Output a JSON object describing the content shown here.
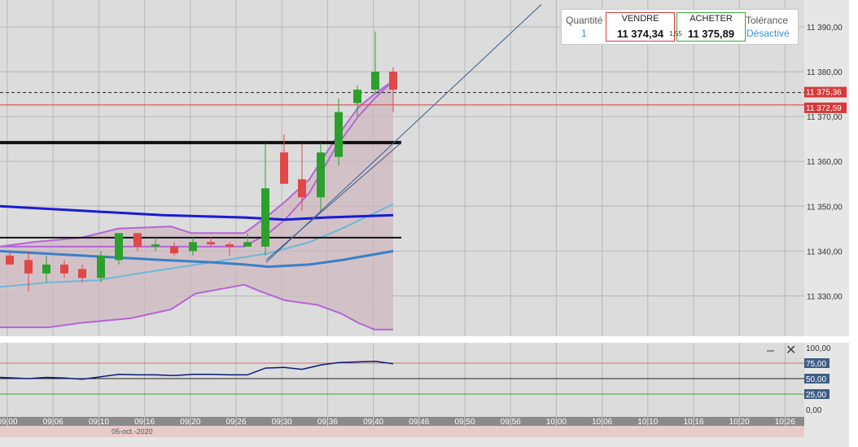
{
  "order_panel": {
    "quantity_label": "Quantité",
    "quantity_value": "1",
    "sell_label": "VENDRE",
    "sell_price": "11 374,34",
    "spread": "1,55",
    "buy_label": "ACHETER",
    "buy_price": "11 375,89",
    "tolerance_label": "Tolérance",
    "tolerance_value": "Désactivé"
  },
  "osc_controls": {
    "minimize": "–",
    "close": "✕"
  },
  "date_label": "05-oct.-2020",
  "colors": {
    "up_candle": "#2ca02c",
    "down_candle": "#e04848",
    "bollinger": "#b565d6",
    "ma_dark": "#1a1ad6",
    "ma_mid": "#3a7fc8",
    "ma_light": "#6db8d8",
    "level_line": "#111111",
    "last_price": "#d63a3a",
    "oscillator": "#0a1a7a"
  },
  "chart_data": [
    {
      "type": "candlestick",
      "title": "",
      "y_ticks": [
        "11 390,00",
        "11 380,00",
        "11 370,00",
        "11 360,00",
        "11 350,00",
        "11 340,00",
        "11 330,00"
      ],
      "ylim": [
        11321,
        11396
      ],
      "price_tags": [
        {
          "label": "11 375,36",
          "value": 11375.36,
          "style": "dashed",
          "color": "#d63a3a"
        },
        {
          "label": "11 372,59",
          "value": 11372.59,
          "style": "solid",
          "color": "#d63a3a"
        }
      ],
      "x_ticks": [
        "09:00",
        "09:06",
        "09:10",
        "09:16",
        "09:20",
        "09:26",
        "09:30",
        "09:36",
        "09:40",
        "09:46",
        "09:50",
        "09:56",
        "10:00",
        "10:06",
        "10:10",
        "10:16",
        "10:20",
        "10:26"
      ],
      "candles": [
        {
          "x": 12,
          "open": 11339,
          "high": 11340,
          "low": 11337,
          "close": 11337
        },
        {
          "x": 35,
          "open": 11338,
          "high": 11340,
          "low": 11331,
          "close": 11335
        },
        {
          "x": 57,
          "open": 11335,
          "high": 11339,
          "low": 11333,
          "close": 11337
        },
        {
          "x": 79,
          "open": 11337,
          "high": 11338,
          "low": 11334,
          "close": 11335
        },
        {
          "x": 101,
          "open": 11336,
          "high": 11337,
          "low": 11333,
          "close": 11334
        },
        {
          "x": 124,
          "open": 11334,
          "high": 11340,
          "low": 11333,
          "close": 11339
        },
        {
          "x": 146,
          "open": 11338,
          "high": 11344,
          "low": 11337,
          "close": 11344
        },
        {
          "x": 169,
          "open": 11344,
          "high": 11344,
          "low": 11340,
          "close": 11341
        },
        {
          "x": 191,
          "open": 11341,
          "high": 11343,
          "low": 11340,
          "close": 11341.5
        },
        {
          "x": 214,
          "open": 11341,
          "high": 11342,
          "low": 11339,
          "close": 11339.5
        },
        {
          "x": 237,
          "open": 11340,
          "high": 11343,
          "low": 11339,
          "close": 11342
        },
        {
          "x": 259,
          "open": 11342,
          "high": 11343,
          "low": 11341,
          "close": 11341.5
        },
        {
          "x": 282,
          "open": 11341.5,
          "high": 11342,
          "low": 11339,
          "close": 11341
        },
        {
          "x": 304,
          "open": 11341,
          "high": 11344,
          "low": 11341,
          "close": 11342
        },
        {
          "x": 326,
          "open": 11341,
          "high": 11364,
          "low": 11339,
          "close": 11354
        },
        {
          "x": 349,
          "open": 11362,
          "high": 11366,
          "low": 11355,
          "close": 11355
        },
        {
          "x": 371,
          "open": 11356,
          "high": 11364,
          "low": 11349,
          "close": 11352
        },
        {
          "x": 394,
          "open": 11352,
          "high": 11364,
          "low": 11349,
          "close": 11362
        },
        {
          "x": 416,
          "open": 11361,
          "high": 11374,
          "low": 11359,
          "close": 11371
        },
        {
          "x": 439,
          "open": 11373,
          "high": 11377,
          "low": 11370,
          "close": 11376
        },
        {
          "x": 461,
          "open": 11376,
          "high": 11389,
          "low": 11375,
          "close": 11380
        },
        {
          "x": 483,
          "open": 11380,
          "high": 11381,
          "low": 11371,
          "close": 11376
        }
      ],
      "bollinger_upper": [
        [
          0,
          11341
        ],
        [
          40,
          11342
        ],
        [
          100,
          11343
        ],
        [
          145,
          11345
        ],
        [
          210,
          11345.5
        ],
        [
          235,
          11344
        ],
        [
          300,
          11344
        ],
        [
          330,
          11348
        ],
        [
          350,
          11351
        ],
        [
          380,
          11356
        ],
        [
          412,
          11365
        ],
        [
          440,
          11372
        ],
        [
          460,
          11375
        ],
        [
          483,
          11378
        ]
      ],
      "bollinger_middle": [
        [
          0,
          11341
        ],
        [
          100,
          11341
        ],
        [
          200,
          11341
        ],
        [
          300,
          11341
        ],
        [
          330,
          11344
        ],
        [
          350,
          11347
        ],
        [
          380,
          11353
        ],
        [
          412,
          11363
        ],
        [
          440,
          11370
        ],
        [
          460,
          11374
        ],
        [
          483,
          11378
        ]
      ],
      "bollinger_lower": [
        [
          0,
          11323
        ],
        [
          60,
          11323
        ],
        [
          100,
          11324
        ],
        [
          160,
          11325
        ],
        [
          210,
          11327
        ],
        [
          240,
          11330.5
        ],
        [
          300,
          11332.5
        ],
        [
          320,
          11331
        ],
        [
          350,
          11329
        ],
        [
          390,
          11328
        ],
        [
          420,
          11326
        ],
        [
          440,
          11324
        ],
        [
          460,
          11322.5
        ],
        [
          483,
          11322.5
        ]
      ],
      "ma_dark": [
        [
          0,
          11350
        ],
        [
          100,
          11349
        ],
        [
          200,
          11348
        ],
        [
          300,
          11347.5
        ],
        [
          350,
          11347
        ],
        [
          400,
          11347.5
        ],
        [
          483,
          11348
        ]
      ],
      "ma_mid": [
        [
          0,
          11340
        ],
        [
          100,
          11339
        ],
        [
          200,
          11338
        ],
        [
          260,
          11337.5
        ],
        [
          300,
          11337
        ],
        [
          330,
          11336.5
        ],
        [
          380,
          11337
        ],
        [
          420,
          11338
        ],
        [
          483,
          11340
        ]
      ],
      "ma_light": [
        [
          0,
          11332
        ],
        [
          60,
          11333
        ],
        [
          120,
          11333.5
        ],
        [
          170,
          11335
        ],
        [
          260,
          11337.5
        ],
        [
          330,
          11339.5
        ],
        [
          380,
          11342
        ],
        [
          420,
          11345
        ],
        [
          483,
          11350.5
        ]
      ],
      "levels": [
        {
          "value": 11364.2,
          "x_end": 493,
          "weight": "thick"
        },
        {
          "value": 11343,
          "x_end": 493,
          "weight": "normal"
        }
      ],
      "trendline": {
        "x1": 327,
        "y1": 11337.5,
        "x2": 665,
        "y2": 11395
      },
      "trendline_parallel": {
        "x1": 327,
        "y1": 11338,
        "x2": 493,
        "y2": 11364.2
      }
    },
    {
      "type": "line",
      "title": "",
      "y_ticks": [
        "100,00",
        "75,00",
        "50,00",
        "25,00",
        "0,00"
      ],
      "ylim": [
        0,
        100
      ],
      "hlines": [
        {
          "value": 75,
          "color": "#d66a6a"
        },
        {
          "value": 50,
          "color": "#222222"
        },
        {
          "value": 25,
          "color": "#3aa33a"
        }
      ],
      "series": [
        {
          "values": [
            [
              0,
              52
            ],
            [
              35,
              50
            ],
            [
              57,
              52
            ],
            [
              79,
              51
            ],
            [
              101,
              49
            ],
            [
              124,
              53
            ],
            [
              146,
              57
            ],
            [
              169,
              56
            ],
            [
              191,
              56
            ],
            [
              214,
              55
            ],
            [
              237,
              57
            ],
            [
              259,
              57
            ],
            [
              282,
              56
            ],
            [
              304,
              56
            ],
            [
              326,
              67
            ],
            [
              349,
              68
            ],
            [
              371,
              65
            ],
            [
              394,
              72
            ],
            [
              416,
              76
            ],
            [
              439,
              77
            ],
            [
              461,
              78
            ],
            [
              483,
              74
            ]
          ]
        }
      ]
    }
  ]
}
